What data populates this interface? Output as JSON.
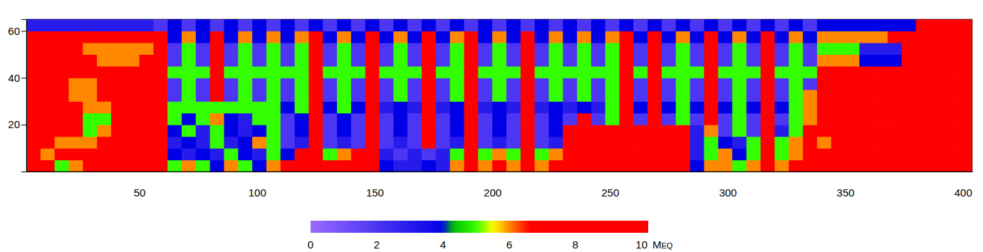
{
  "chart_data": {
    "type": "heatmap",
    "xlim": [
      2,
      404
    ],
    "ylim": [
      0,
      65
    ],
    "xticks": [
      50,
      100,
      150,
      200,
      250,
      300,
      350,
      400
    ],
    "yticks": [
      20,
      40,
      60
    ],
    "x_edges": [
      2,
      8,
      14,
      20,
      26,
      32,
      38,
      44,
      50,
      56,
      62,
      68,
      74,
      80,
      86,
      92,
      98,
      104,
      110,
      116,
      122,
      128,
      134,
      140,
      146,
      152,
      158,
      164,
      170,
      176,
      182,
      188,
      194,
      200,
      206,
      212,
      218,
      224,
      230,
      236,
      242,
      248,
      254,
      260,
      266,
      272,
      278,
      284,
      290,
      296,
      302,
      308,
      314,
      320,
      326,
      332,
      338,
      344,
      350,
      356,
      362,
      368,
      374,
      380,
      386,
      392,
      398,
      404
    ],
    "y_edges": [
      0,
      5,
      10,
      15,
      20,
      25,
      30,
      35,
      40,
      45,
      50,
      55,
      60,
      65
    ],
    "z": [
      [
        9,
        9,
        5,
        6,
        9,
        9,
        9,
        9,
        9,
        9,
        5,
        6,
        5,
        4,
        6,
        5,
        4,
        6,
        7,
        9,
        9,
        7,
        8,
        9,
        9,
        4,
        3,
        3,
        4,
        3,
        6,
        9,
        6,
        7,
        6,
        9,
        6,
        7,
        9,
        9,
        9,
        8,
        7,
        9,
        9,
        9,
        8,
        4,
        6,
        6,
        5,
        6,
        9,
        6,
        7,
        9,
        9,
        9,
        9,
        9,
        9,
        9,
        9,
        9,
        9,
        9,
        9
      ],
      [
        9,
        6,
        9,
        9,
        9,
        9,
        9,
        9,
        9,
        9,
        4,
        3,
        4,
        3,
        5,
        4,
        3,
        5,
        4,
        7,
        9,
        5,
        6,
        9,
        9,
        3,
        2,
        3,
        2,
        3,
        5,
        9,
        5,
        6,
        5,
        9,
        5,
        6,
        9,
        9,
        9,
        7,
        7,
        9,
        9,
        9,
        9,
        3,
        5,
        6,
        4,
        5,
        9,
        5,
        6,
        9,
        7,
        8,
        9,
        9,
        9,
        9,
        9,
        9,
        9,
        9,
        9
      ],
      [
        9,
        9,
        6,
        6,
        6,
        9,
        9,
        9,
        9,
        9,
        3,
        4,
        3,
        5,
        3,
        4,
        6,
        5,
        2,
        3,
        9,
        2,
        3,
        2,
        9,
        2,
        3,
        2,
        9,
        2,
        3,
        9,
        2,
        3,
        2,
        9,
        2,
        3,
        7,
        9,
        9,
        9,
        9,
        9,
        9,
        9,
        9,
        3,
        5,
        4,
        3,
        5,
        9,
        5,
        6,
        9,
        6,
        8,
        9,
        9,
        9,
        9,
        9,
        9,
        9,
        9,
        9
      ],
      [
        9,
        9,
        9,
        9,
        5,
        6,
        9,
        9,
        9,
        9,
        4,
        5,
        3,
        5,
        4,
        3,
        4,
        5,
        2,
        4,
        9,
        2,
        4,
        2,
        9,
        2,
        4,
        2,
        9,
        2,
        4,
        9,
        2,
        4,
        2,
        9,
        2,
        4,
        9,
        9,
        9,
        9,
        9,
        9,
        9,
        9,
        9,
        3,
        6,
        2,
        5,
        2,
        9,
        3,
        5,
        7,
        7,
        7,
        7,
        9,
        9,
        9,
        9,
        9,
        9,
        9,
        9
      ],
      [
        9,
        9,
        9,
        9,
        5,
        5,
        9,
        9,
        9,
        9,
        5,
        4,
        5,
        6,
        4,
        3,
        5,
        5,
        2,
        4,
        9,
        2,
        4,
        2,
        9,
        2,
        4,
        2,
        9,
        2,
        4,
        9,
        2,
        4,
        2,
        9,
        2,
        4,
        2,
        9,
        2,
        5,
        9,
        2,
        9,
        2,
        5,
        2,
        9,
        2,
        5,
        2,
        9,
        2,
        5,
        6,
        7,
        7,
        7,
        9,
        9,
        9,
        9,
        9,
        9,
        9,
        9
      ],
      [
        9,
        9,
        9,
        9,
        6,
        6,
        9,
        9,
        9,
        9,
        5,
        5,
        5,
        5,
        5,
        5,
        5,
        5,
        4,
        5,
        9,
        4,
        5,
        4,
        9,
        3,
        4,
        3,
        9,
        3,
        4,
        9,
        3,
        4,
        3,
        9,
        3,
        4,
        3,
        4,
        3,
        5,
        9,
        4,
        9,
        4,
        5,
        4,
        9,
        4,
        5,
        4,
        9,
        4,
        5,
        6,
        9,
        9,
        9,
        9,
        9,
        9,
        9,
        9,
        9,
        9,
        9
      ],
      [
        9,
        9,
        9,
        6,
        6,
        9,
        9,
        9,
        9,
        9,
        2,
        5,
        2,
        9,
        2,
        5,
        2,
        5,
        2,
        5,
        9,
        2,
        5,
        2,
        9,
        2,
        5,
        2,
        9,
        2,
        5,
        9,
        2,
        5,
        2,
        9,
        2,
        5,
        2,
        5,
        2,
        5,
        9,
        2,
        9,
        2,
        5,
        2,
        9,
        2,
        5,
        2,
        9,
        2,
        5,
        6,
        9,
        9,
        9,
        9,
        9,
        9,
        9,
        9,
        9,
        9,
        9
      ],
      [
        9,
        9,
        9,
        6,
        6,
        9,
        9,
        9,
        9,
        9,
        2,
        5,
        2,
        9,
        2,
        5,
        2,
        5,
        2,
        5,
        9,
        2,
        5,
        2,
        9,
        2,
        5,
        2,
        9,
        2,
        5,
        9,
        2,
        5,
        2,
        9,
        2,
        5,
        2,
        5,
        2,
        5,
        9,
        2,
        9,
        2,
        5,
        2,
        9,
        2,
        5,
        2,
        9,
        2,
        5,
        2,
        9,
        9,
        9,
        9,
        9,
        9,
        9,
        9,
        9,
        9,
        9
      ],
      [
        9,
        9,
        9,
        9,
        9,
        9,
        9,
        9,
        9,
        9,
        5,
        5,
        5,
        9,
        5,
        5,
        5,
        5,
        5,
        5,
        9,
        5,
        5,
        5,
        9,
        5,
        5,
        5,
        9,
        5,
        5,
        9,
        5,
        5,
        5,
        9,
        5,
        5,
        5,
        5,
        5,
        5,
        9,
        5,
        9,
        5,
        5,
        5,
        9,
        5,
        5,
        5,
        9,
        5,
        5,
        5,
        9,
        9,
        7,
        7,
        7,
        9,
        9,
        9,
        9,
        9,
        9
      ],
      [
        9,
        9,
        9,
        9,
        9,
        6,
        6,
        6,
        9,
        9,
        2,
        5,
        2,
        9,
        2,
        5,
        2,
        5,
        2,
        5,
        9,
        2,
        5,
        2,
        9,
        2,
        5,
        2,
        9,
        2,
        5,
        9,
        2,
        5,
        2,
        9,
        2,
        5,
        2,
        5,
        2,
        5,
        9,
        2,
        9,
        2,
        5,
        2,
        9,
        2,
        5,
        2,
        9,
        2,
        5,
        2,
        6,
        6,
        6,
        4,
        4,
        4,
        9,
        9,
        9,
        9,
        9
      ],
      [
        9,
        9,
        9,
        9,
        6,
        6,
        6,
        6,
        6,
        9,
        2,
        5,
        2,
        9,
        2,
        5,
        2,
        5,
        2,
        5,
        9,
        2,
        5,
        2,
        9,
        2,
        5,
        2,
        9,
        2,
        5,
        9,
        2,
        5,
        2,
        9,
        2,
        5,
        2,
        5,
        2,
        5,
        9,
        2,
        9,
        2,
        5,
        2,
        9,
        2,
        5,
        2,
        9,
        2,
        5,
        2,
        5,
        5,
        5,
        3,
        3,
        3,
        9,
        9,
        9,
        9,
        9
      ],
      [
        9,
        9,
        9,
        9,
        9,
        9,
        9,
        9,
        9,
        9,
        4,
        6,
        4,
        9,
        4,
        6,
        4,
        6,
        4,
        6,
        9,
        4,
        6,
        4,
        9,
        4,
        6,
        4,
        9,
        4,
        6,
        9,
        4,
        6,
        4,
        9,
        4,
        6,
        4,
        6,
        4,
        6,
        9,
        4,
        9,
        4,
        6,
        4,
        9,
        4,
        6,
        4,
        9,
        4,
        6,
        4,
        6,
        6,
        6,
        6,
        6,
        9,
        9,
        9,
        9,
        9,
        9
      ],
      [
        3,
        3,
        3,
        3,
        3,
        3,
        3,
        3,
        3,
        2,
        4,
        2,
        4,
        2,
        4,
        2,
        4,
        2,
        4,
        2,
        4,
        2,
        4,
        2,
        4,
        2,
        4,
        2,
        4,
        2,
        4,
        2,
        4,
        2,
        4,
        2,
        4,
        2,
        4,
        2,
        4,
        2,
        4,
        2,
        4,
        2,
        4,
        2,
        4,
        2,
        4,
        2,
        4,
        2,
        4,
        2,
        4,
        4,
        4,
        4,
        4,
        4,
        4,
        9,
        9,
        9,
        9
      ]
    ],
    "colorbar": {
      "range": [
        0,
        10.2
      ],
      "ticks": [
        0,
        2,
        4,
        6,
        8,
        10
      ],
      "label": "Meq"
    }
  }
}
